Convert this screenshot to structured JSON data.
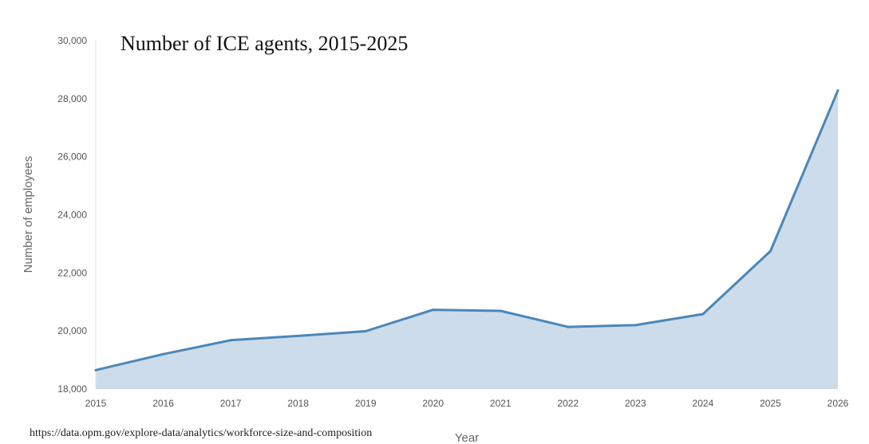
{
  "chart_data": {
    "type": "area",
    "title": "Number of ICE agents, 2015-2025",
    "xlabel": "Year",
    "ylabel": "Number of employees",
    "x": [
      2015,
      2016,
      2017,
      2018,
      2019,
      2020,
      2021,
      2022,
      2023,
      2024,
      2025,
      2026
    ],
    "series": [
      {
        "name": "Number of employees",
        "values": [
          18650,
          19200,
          19680,
          19830,
          19990,
          20730,
          20690,
          20140,
          20200,
          20580,
          22750,
          28280
        ]
      }
    ],
    "xlim": [
      2015,
      2026
    ],
    "ylim": [
      18000,
      30000
    ],
    "yticks": [
      18000,
      20000,
      22000,
      24000,
      26000,
      28000,
      30000
    ],
    "ytick_labels": [
      "18,000",
      "20,000",
      "22,000",
      "24,000",
      "26,000",
      "28,000",
      "30,000"
    ],
    "xtick_labels": [
      "2015",
      "2016",
      "2017",
      "2018",
      "2019",
      "2020",
      "2021",
      "2022",
      "2023",
      "2024",
      "2025",
      "2026"
    ],
    "grid": false,
    "line_color": "#4a87b8",
    "fill_color": "#ccdceb",
    "source": "https://data.opm.gov/explore-data/analytics/workforce-size-and-composition"
  }
}
